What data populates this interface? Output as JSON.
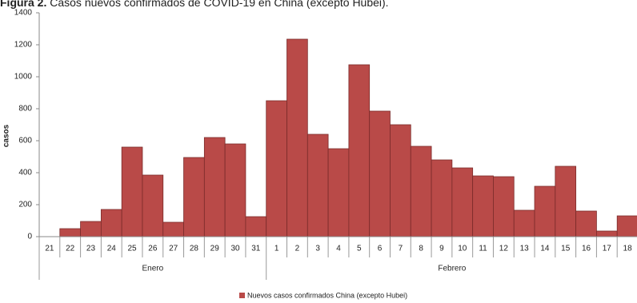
{
  "chart_data": {
    "type": "bar",
    "title_label": "Figura 2.",
    "title": "Casos nuevos confirmados de COVID-19 en China (excepto Hubei).",
    "y_label": "casos",
    "categories": [
      21,
      22,
      23,
      24,
      25,
      26,
      27,
      28,
      29,
      30,
      31,
      1,
      2,
      3,
      4,
      5,
      6,
      7,
      8,
      9,
      10,
      11,
      12,
      13,
      14,
      15,
      16,
      17,
      18
    ],
    "groups": [
      "Enero",
      "Febrero"
    ],
    "series": [
      {
        "name": "Nuevos casos confirmados China (excepto Hubei)",
        "color": "#b94a48",
        "values": [
          0,
          50,
          95,
          170,
          560,
          385,
          90,
          495,
          620,
          580,
          125,
          850,
          1235,
          640,
          550,
          1075,
          785,
          700,
          565,
          480,
          430,
          380,
          375,
          165,
          315,
          440,
          160,
          35,
          130
        ]
      }
    ],
    "ylim": [
      0,
      1400
    ],
    "yticks": [
      0,
      200,
      400,
      600,
      800,
      1000,
      1200,
      1400
    ],
    "grid": false,
    "legend": "bottom"
  }
}
